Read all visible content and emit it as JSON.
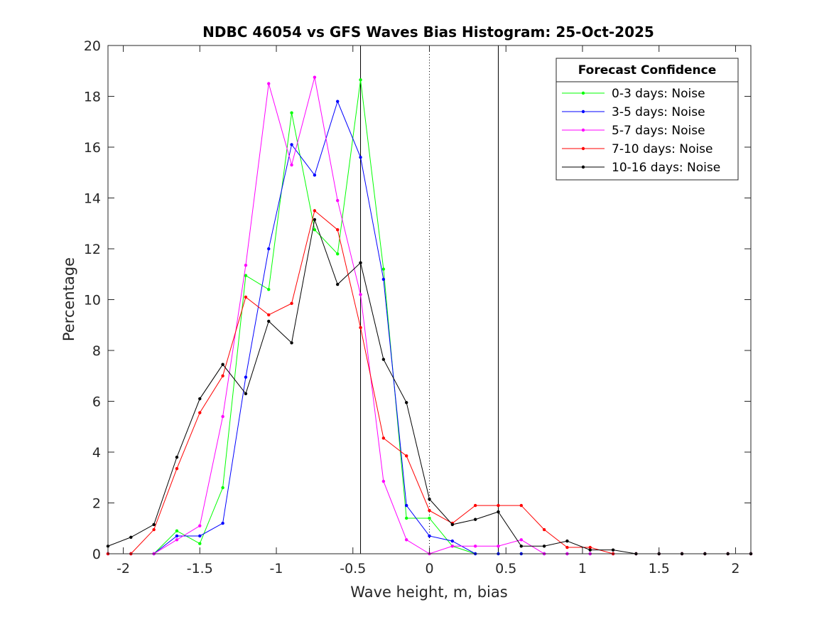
{
  "chart_data": {
    "type": "line",
    "title": "NDBC 46054 vs GFS Waves Bias Histogram: 25-Oct-2025",
    "xlabel": "Wave height, m, bias",
    "ylabel": "Percentage",
    "xlim": [
      -2.1,
      2.1
    ],
    "ylim": [
      0,
      20
    ],
    "xticks": [
      -2,
      -1.5,
      -1,
      -0.5,
      0,
      0.5,
      1,
      1.5,
      2
    ],
    "xtick_labels": [
      "-2",
      "-1.5",
      "-1",
      "-0.5",
      "0",
      "0.5",
      "1",
      "1.5",
      "2"
    ],
    "yticks": [
      0,
      2,
      4,
      6,
      8,
      10,
      12,
      14,
      16,
      18,
      20
    ],
    "ytick_labels": [
      "0",
      "2",
      "4",
      "6",
      "8",
      "10",
      "12",
      "14",
      "16",
      "18",
      "20"
    ],
    "grid": false,
    "legend": {
      "title": "Forecast Confidence",
      "location": "top-right"
    },
    "reference_lines": [
      {
        "x": -0.45,
        "style": "solid",
        "color": "#000000"
      },
      {
        "x": 0,
        "style": "dotted",
        "color": "#000000"
      },
      {
        "x": 0.45,
        "style": "solid",
        "color": "#000000"
      }
    ],
    "x": [
      -2.1,
      -1.95,
      -1.8,
      -1.65,
      -1.5,
      -1.35,
      -1.2,
      -1.05,
      -0.9,
      -0.75,
      -0.6,
      -0.45,
      -0.3,
      -0.15,
      0,
      0.15,
      0.3,
      0.45,
      0.6,
      0.75,
      0.9,
      1.05,
      1.2,
      1.35,
      1.5,
      1.65,
      1.8,
      1.95,
      2.1
    ],
    "series": [
      {
        "name": "0-3 days: Noise",
        "color": "#00ff00",
        "values": [
          0,
          0,
          0,
          0.9,
          0.4,
          2.6,
          10.95,
          10.4,
          17.35,
          12.75,
          11.8,
          18.65,
          11.2,
          1.4,
          1.4,
          0.3,
          0,
          0,
          0,
          0,
          0,
          0,
          0,
          0,
          0,
          0,
          0,
          0,
          0
        ]
      },
      {
        "name": "3-5 days: Noise",
        "color": "#0000ff",
        "values": [
          0,
          0,
          0,
          0.7,
          0.7,
          1.2,
          6.95,
          12.0,
          16.1,
          14.9,
          17.8,
          15.6,
          10.8,
          1.9,
          0.7,
          0.5,
          0,
          0,
          0,
          0,
          0,
          0,
          0,
          0,
          0,
          0,
          0,
          0,
          0
        ]
      },
      {
        "name": "5-7 days: Noise",
        "color": "#ff00ff",
        "values": [
          0,
          0,
          0,
          0.55,
          1.1,
          5.4,
          11.35,
          18.5,
          15.3,
          18.75,
          13.9,
          10.2,
          2.85,
          0.55,
          0,
          0.3,
          0.3,
          0.3,
          0.55,
          0,
          0,
          0,
          0,
          0,
          0,
          0,
          0,
          0,
          0
        ]
      },
      {
        "name": "7-10 days: Noise",
        "color": "#ff0000",
        "values": [
          0,
          0,
          0.95,
          3.35,
          5.55,
          7.0,
          10.1,
          9.4,
          9.85,
          13.5,
          12.75,
          8.9,
          4.55,
          3.85,
          1.7,
          1.2,
          1.9,
          1.9,
          1.9,
          0.95,
          0.25,
          0.25,
          0,
          0,
          0,
          0,
          0,
          0,
          0
        ]
      },
      {
        "name": "10-16 days: Noise",
        "color": "#000000",
        "values": [
          0.3,
          0.65,
          1.15,
          3.8,
          6.1,
          7.45,
          6.3,
          9.15,
          8.3,
          13.15,
          10.6,
          11.45,
          7.65,
          5.95,
          2.15,
          1.15,
          1.35,
          1.65,
          0.3,
          0.3,
          0.5,
          0.15,
          0.15,
          0,
          0,
          0,
          0,
          0,
          0
        ]
      }
    ]
  }
}
